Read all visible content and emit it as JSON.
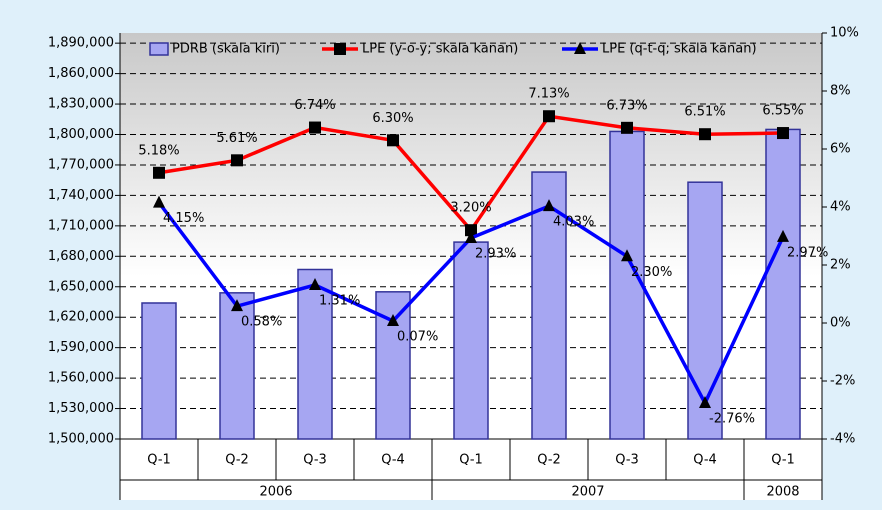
{
  "chart_data": {
    "type": "combo",
    "categories": [
      "Q-1",
      "Q-2",
      "Q-3",
      "Q-4",
      "Q-1",
      "Q-2",
      "Q-3",
      "Q-4",
      "Q-1"
    ],
    "category_groups": [
      "2006",
      "2006",
      "2006",
      "2006",
      "2007",
      "2007",
      "2007",
      "2007",
      "2008"
    ],
    "series": [
      {
        "name": "PDRB (skala kiri)",
        "type": "bar",
        "color": "#a6a6f2",
        "edge": "#333399",
        "values": [
          1634000,
          1644000,
          1667000,
          1645000,
          1694000,
          1763000,
          1803000,
          1753000,
          1805000
        ]
      },
      {
        "name": "LPE (y-o-y; skala kanan)",
        "type": "line",
        "axis": "y2",
        "color": "#ff0000",
        "marker": "square",
        "values": [
          5.18,
          5.61,
          6.74,
          6.3,
          3.2,
          7.13,
          6.73,
          6.51,
          6.55
        ],
        "value_labels": [
          "5.18%",
          "5.61%",
          "6.74%",
          "6.30%",
          "3.20%",
          "7.13%",
          "6.73%",
          "6.51%",
          "6.55%"
        ]
      },
      {
        "name": "LPE (q-t-q; skala kanan)",
        "type": "line",
        "axis": "y2",
        "color": "#0000ff",
        "marker": "triangle",
        "values": [
          4.15,
          0.58,
          1.31,
          0.07,
          2.93,
          4.03,
          2.3,
          -2.76,
          2.97
        ],
        "value_labels": [
          "4.15%",
          "0.58%",
          "1.31%",
          "0.07%",
          "2.93%",
          "4.03%",
          "2.30%",
          "-2.76%",
          "2.97%"
        ]
      }
    ],
    "ylim": [
      1500000,
      1900000
    ],
    "yticks": [
      {
        "value": 1500000,
        "label": "1,500,000"
      },
      {
        "value": 1530000,
        "label": "1,530,000"
      },
      {
        "value": 1560000,
        "label": "1,560,000"
      },
      {
        "value": 1590000,
        "label": "1,590,000"
      },
      {
        "value": 1620000,
        "label": "1,620,000"
      },
      {
        "value": 1650000,
        "label": "1,650,000"
      },
      {
        "value": 1680000,
        "label": "1,680,000"
      },
      {
        "value": 1710000,
        "label": "1,710,000"
      },
      {
        "value": 1740000,
        "label": "1,740,000"
      },
      {
        "value": 1770000,
        "label": "1,770,000"
      },
      {
        "value": 1800000,
        "label": "1,800,000"
      },
      {
        "value": 1830000,
        "label": "1,830,000"
      },
      {
        "value": 1860000,
        "label": "1,860,000"
      },
      {
        "value": 1890000,
        "label": "1,890,000"
      }
    ],
    "y2lim": [
      -4,
      10
    ],
    "y2ticks": [
      {
        "value": 10,
        "label": "10%"
      },
      {
        "value": 8,
        "label": "8%"
      },
      {
        "value": 6,
        "label": "6%"
      },
      {
        "value": 4,
        "label": "4%"
      },
      {
        "value": 2,
        "label": "2%"
      },
      {
        "value": 0,
        "label": "0%"
      },
      {
        "value": -2,
        "label": "-2%"
      },
      {
        "value": -4,
        "label": "-4%"
      }
    ],
    "grid": true,
    "legend": "top"
  }
}
